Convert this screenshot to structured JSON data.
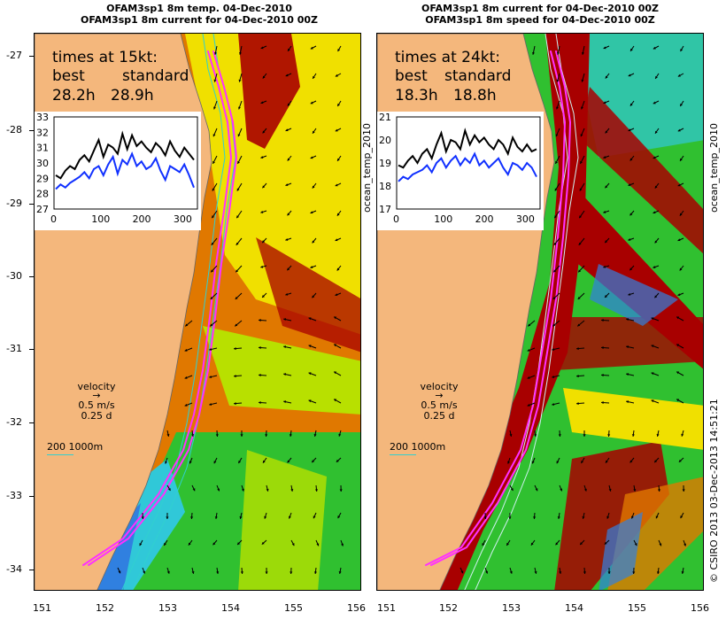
{
  "left": {
    "title1": "OFAM3sp1 8m temp. 04-Dec-2010",
    "title2": "OFAM3sp1 8m current for 04-Dec-2010 00Z",
    "times_heading": "times at 15kt:",
    "col1_label": "best",
    "col2_label": "standard",
    "col1_value": "28.2h",
    "col2_value": "28.9h",
    "inset_y_ticks": [
      "33",
      "32",
      "31",
      "30",
      "29",
      "28",
      "27"
    ],
    "inset_x_ticks": [
      "0",
      "100",
      "200",
      "300"
    ],
    "velocity_label": "velocity",
    "velocity_speed": "0.5 m/s",
    "velocity_time": "0.25 d",
    "depth_label": "200  1000m",
    "inset_series": {
      "black": [
        29.2,
        29.0,
        29.5,
        29.8,
        29.6,
        30.2,
        30.5,
        30.1,
        30.8,
        31.5,
        30.4,
        31.2,
        31.0,
        30.6,
        31.9,
        30.9,
        31.8,
        31.1,
        31.4,
        31.0,
        30.7,
        31.3,
        31.0,
        30.5,
        31.4,
        30.8,
        30.4,
        31.0,
        30.6,
        30.2
      ],
      "blue": [
        28.3,
        28.6,
        28.4,
        28.7,
        28.9,
        29.1,
        29.4,
        29.0,
        29.6,
        29.8,
        29.2,
        29.9,
        30.4,
        29.3,
        30.2,
        29.9,
        30.6,
        29.8,
        30.1,
        29.6,
        29.8,
        30.3,
        29.5,
        28.9,
        29.8,
        29.6,
        29.4,
        29.9,
        29.2,
        28.4
      ]
    }
  },
  "right": {
    "title1": "OFAM3sp1 8m current for 04-Dec-2010 00Z",
    "title2": "OFAM3sp1 8m speed for 04-Dec-2010 00Z",
    "times_heading": "times at 24kt:",
    "col1_label": "best",
    "col2_label": "standard",
    "col1_value": "18.3h",
    "col2_value": "18.8h",
    "inset_y_ticks": [
      "21",
      "20",
      "19",
      "18",
      "17"
    ],
    "inset_x_ticks": [
      "0",
      "100",
      "200",
      "300"
    ],
    "velocity_label": "velocity",
    "velocity_speed": "0.5 m/s",
    "velocity_time": "0.25 d",
    "depth_label": "200  1000m",
    "inset_series": {
      "black": [
        18.9,
        18.8,
        19.1,
        19.3,
        19.0,
        19.4,
        19.6,
        19.2,
        19.8,
        20.3,
        19.5,
        20.0,
        19.9,
        19.6,
        20.4,
        19.8,
        20.2,
        19.9,
        20.1,
        19.8,
        19.6,
        20.0,
        19.8,
        19.4,
        20.1,
        19.7,
        19.5,
        19.8,
        19.5,
        19.6
      ],
      "blue": [
        18.2,
        18.4,
        18.3,
        18.5,
        18.6,
        18.7,
        18.9,
        18.6,
        19.0,
        19.2,
        18.8,
        19.1,
        19.3,
        18.9,
        19.2,
        19.0,
        19.4,
        18.9,
        19.1,
        18.8,
        19.0,
        19.2,
        18.8,
        18.5,
        19.0,
        18.9,
        18.7,
        19.0,
        18.8,
        18.4
      ]
    }
  },
  "lat_labels": [
    "-27",
    "-28",
    "-29",
    "-30",
    "-31",
    "-32",
    "-33",
    "-34"
  ],
  "lon_labels": [
    "151",
    "152",
    "153",
    "154",
    "155",
    "156"
  ],
  "side_label_left": "ocean_temp_2010",
  "side_label_right": "ocean_temp_2010",
  "credit": "© CSIRO 2013   03-Dec-2013 14:51:21",
  "colors": {
    "land": "#f4b77c",
    "dark_red": "#a80000",
    "orange": "#e07800",
    "yellow": "#f0e000",
    "yellow_green": "#b8e000",
    "green": "#30c030",
    "cyan": "#30c8d8",
    "blue": "#3080e0",
    "track": "#ff30ff"
  }
}
